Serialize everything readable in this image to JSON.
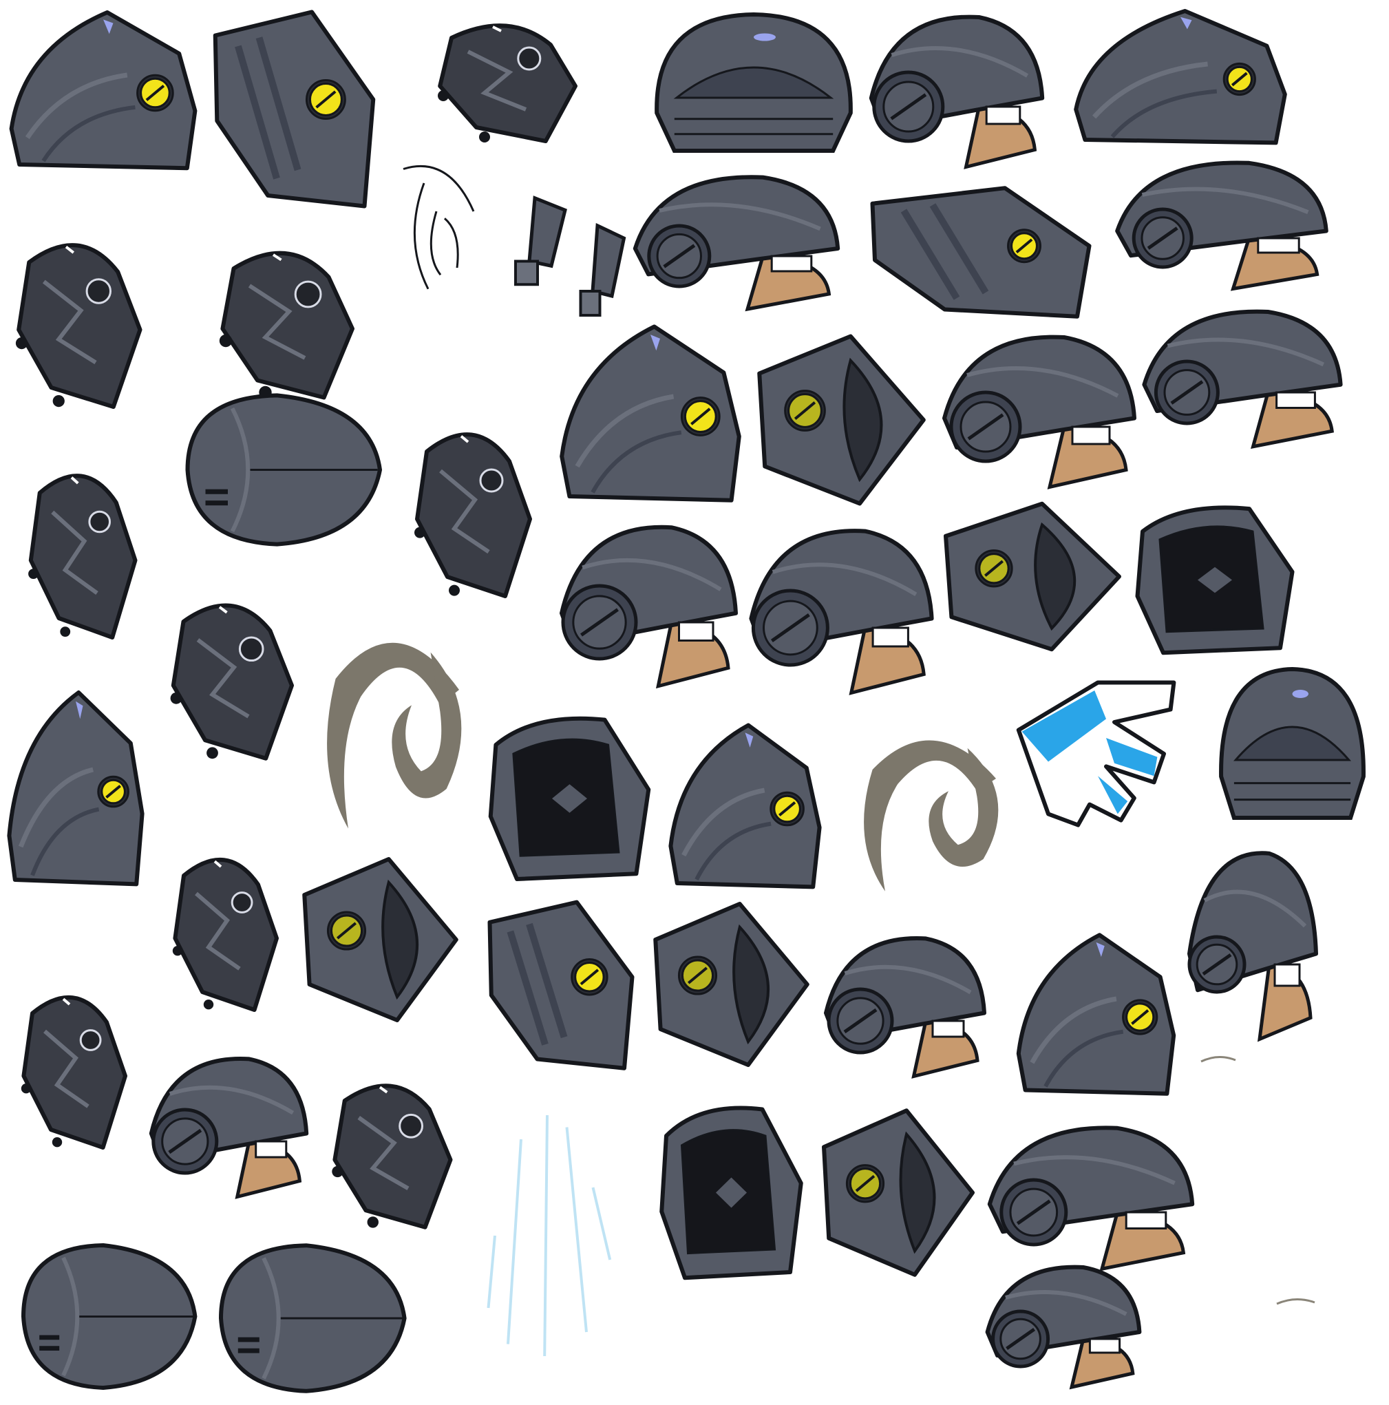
{
  "sheet": {
    "kind": "sprite-sheet",
    "background": "#ffffff",
    "palette": {
      "helmet_dark": "#3e4350",
      "helmet_mid": "#555a66",
      "helmet_light": "#6b707c",
      "outline": "#15171c",
      "screw_yellow": "#f2e31a",
      "screw_olive": "#b8b51f",
      "skin": "#c89a6e",
      "highlight": "#9aa4ee",
      "horn": "#7c776b",
      "glove_blue": "#2aa5e8",
      "pink": "#f19ab6",
      "sparkle": "#bfe3f4"
    },
    "sprite_kinds": [
      "helmet-front-icon",
      "helmet-side-icon",
      "helmet-with-face-icon",
      "helmet-top-icon",
      "helmet-back-icon",
      "helmet-ring-icon",
      "helmet-inner-icon",
      "tech-gadget-icon",
      "gadget-part-icon",
      "horn-icon",
      "glove-icon",
      "sketch-icon",
      "sparkle-icon"
    ]
  }
}
